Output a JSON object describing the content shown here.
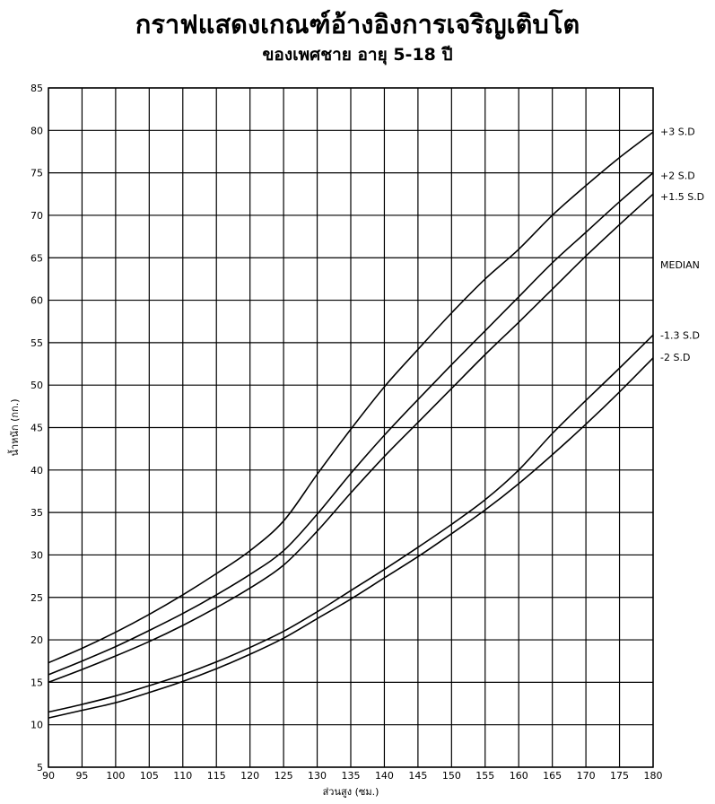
{
  "chart_data": {
    "type": "line",
    "title": "กราฟแสดงเกณฑ์อ้างอิงการเจริญเติบโต",
    "subtitle": "ของเพศชาย อายุ 5-18 ปี",
    "xlabel": "ส่วนสูง (ซม.)",
    "ylabel": "น้ำหนัก (กก.)",
    "xlim": [
      90,
      180
    ],
    "ylim": [
      5,
      85
    ],
    "xticks": [
      "90",
      "95",
      "100",
      "105",
      "110",
      "115",
      "120",
      "125",
      "130",
      "135",
      "140",
      "145",
      "150",
      "155",
      "160",
      "165",
      "170",
      "175",
      "180"
    ],
    "yticks": [
      "5",
      "10",
      "15",
      "20",
      "25",
      "30",
      "35",
      "40",
      "45",
      "50",
      "55",
      "60",
      "65",
      "70",
      "75",
      "80",
      "85"
    ],
    "grid": true,
    "x": [
      90,
      95,
      100,
      105,
      110,
      115,
      120,
      125,
      130,
      135,
      140,
      145,
      150,
      155,
      160,
      165,
      170,
      175,
      180
    ],
    "series": [
      {
        "name": "+3 S.D",
        "values": [
          17.3,
          19.0,
          20.9,
          23.0,
          25.3,
          27.8,
          30.5,
          34.0,
          39.5,
          44.8,
          49.8,
          54.2,
          58.5,
          62.5,
          66.0,
          70.0,
          73.5,
          76.8,
          79.8
        ]
      },
      {
        "name": "+2 S.D",
        "values": [
          15.9,
          17.5,
          19.2,
          21.1,
          23.1,
          25.3,
          27.7,
          30.5,
          34.8,
          39.6,
          44.1,
          48.3,
          52.4,
          56.4,
          60.4,
          64.4,
          68.0,
          71.6,
          75.0
        ]
      },
      {
        "name": "+1.5 S.D",
        "values": [
          15.0,
          16.5,
          18.1,
          19.8,
          21.7,
          23.8,
          26.1,
          28.8,
          32.8,
          37.3,
          41.6,
          45.6,
          49.6,
          53.6,
          57.4,
          61.3,
          65.2,
          68.9,
          72.5
        ]
      },
      {
        "name": "-1.3 S.D",
        "values": [
          11.5,
          12.4,
          13.4,
          14.6,
          15.9,
          17.4,
          19.1,
          21.0,
          23.3,
          25.8,
          28.3,
          30.9,
          33.6,
          36.5,
          40.0,
          44.3,
          48.2,
          52.0,
          55.9
        ]
      },
      {
        "name": "-2 S.D",
        "values": [
          10.8,
          11.7,
          12.6,
          13.8,
          15.1,
          16.6,
          18.3,
          20.2,
          22.5,
          24.8,
          27.3,
          29.8,
          32.5,
          35.3,
          38.4,
          41.8,
          45.4,
          49.2,
          53.2
        ]
      }
    ],
    "right_labels": [
      {
        "text": "+3 S.D",
        "y": 79.9
      },
      {
        "text": "+2 S.D",
        "y": 74.7
      },
      {
        "text": "+1.5 S.D",
        "y": 72.2
      },
      {
        "text": "MEDIAN",
        "y": 64.2
      },
      {
        "text": "-1.3 S.D",
        "y": 55.9
      },
      {
        "text": "-2 S.D",
        "y": 53.3
      }
    ]
  }
}
